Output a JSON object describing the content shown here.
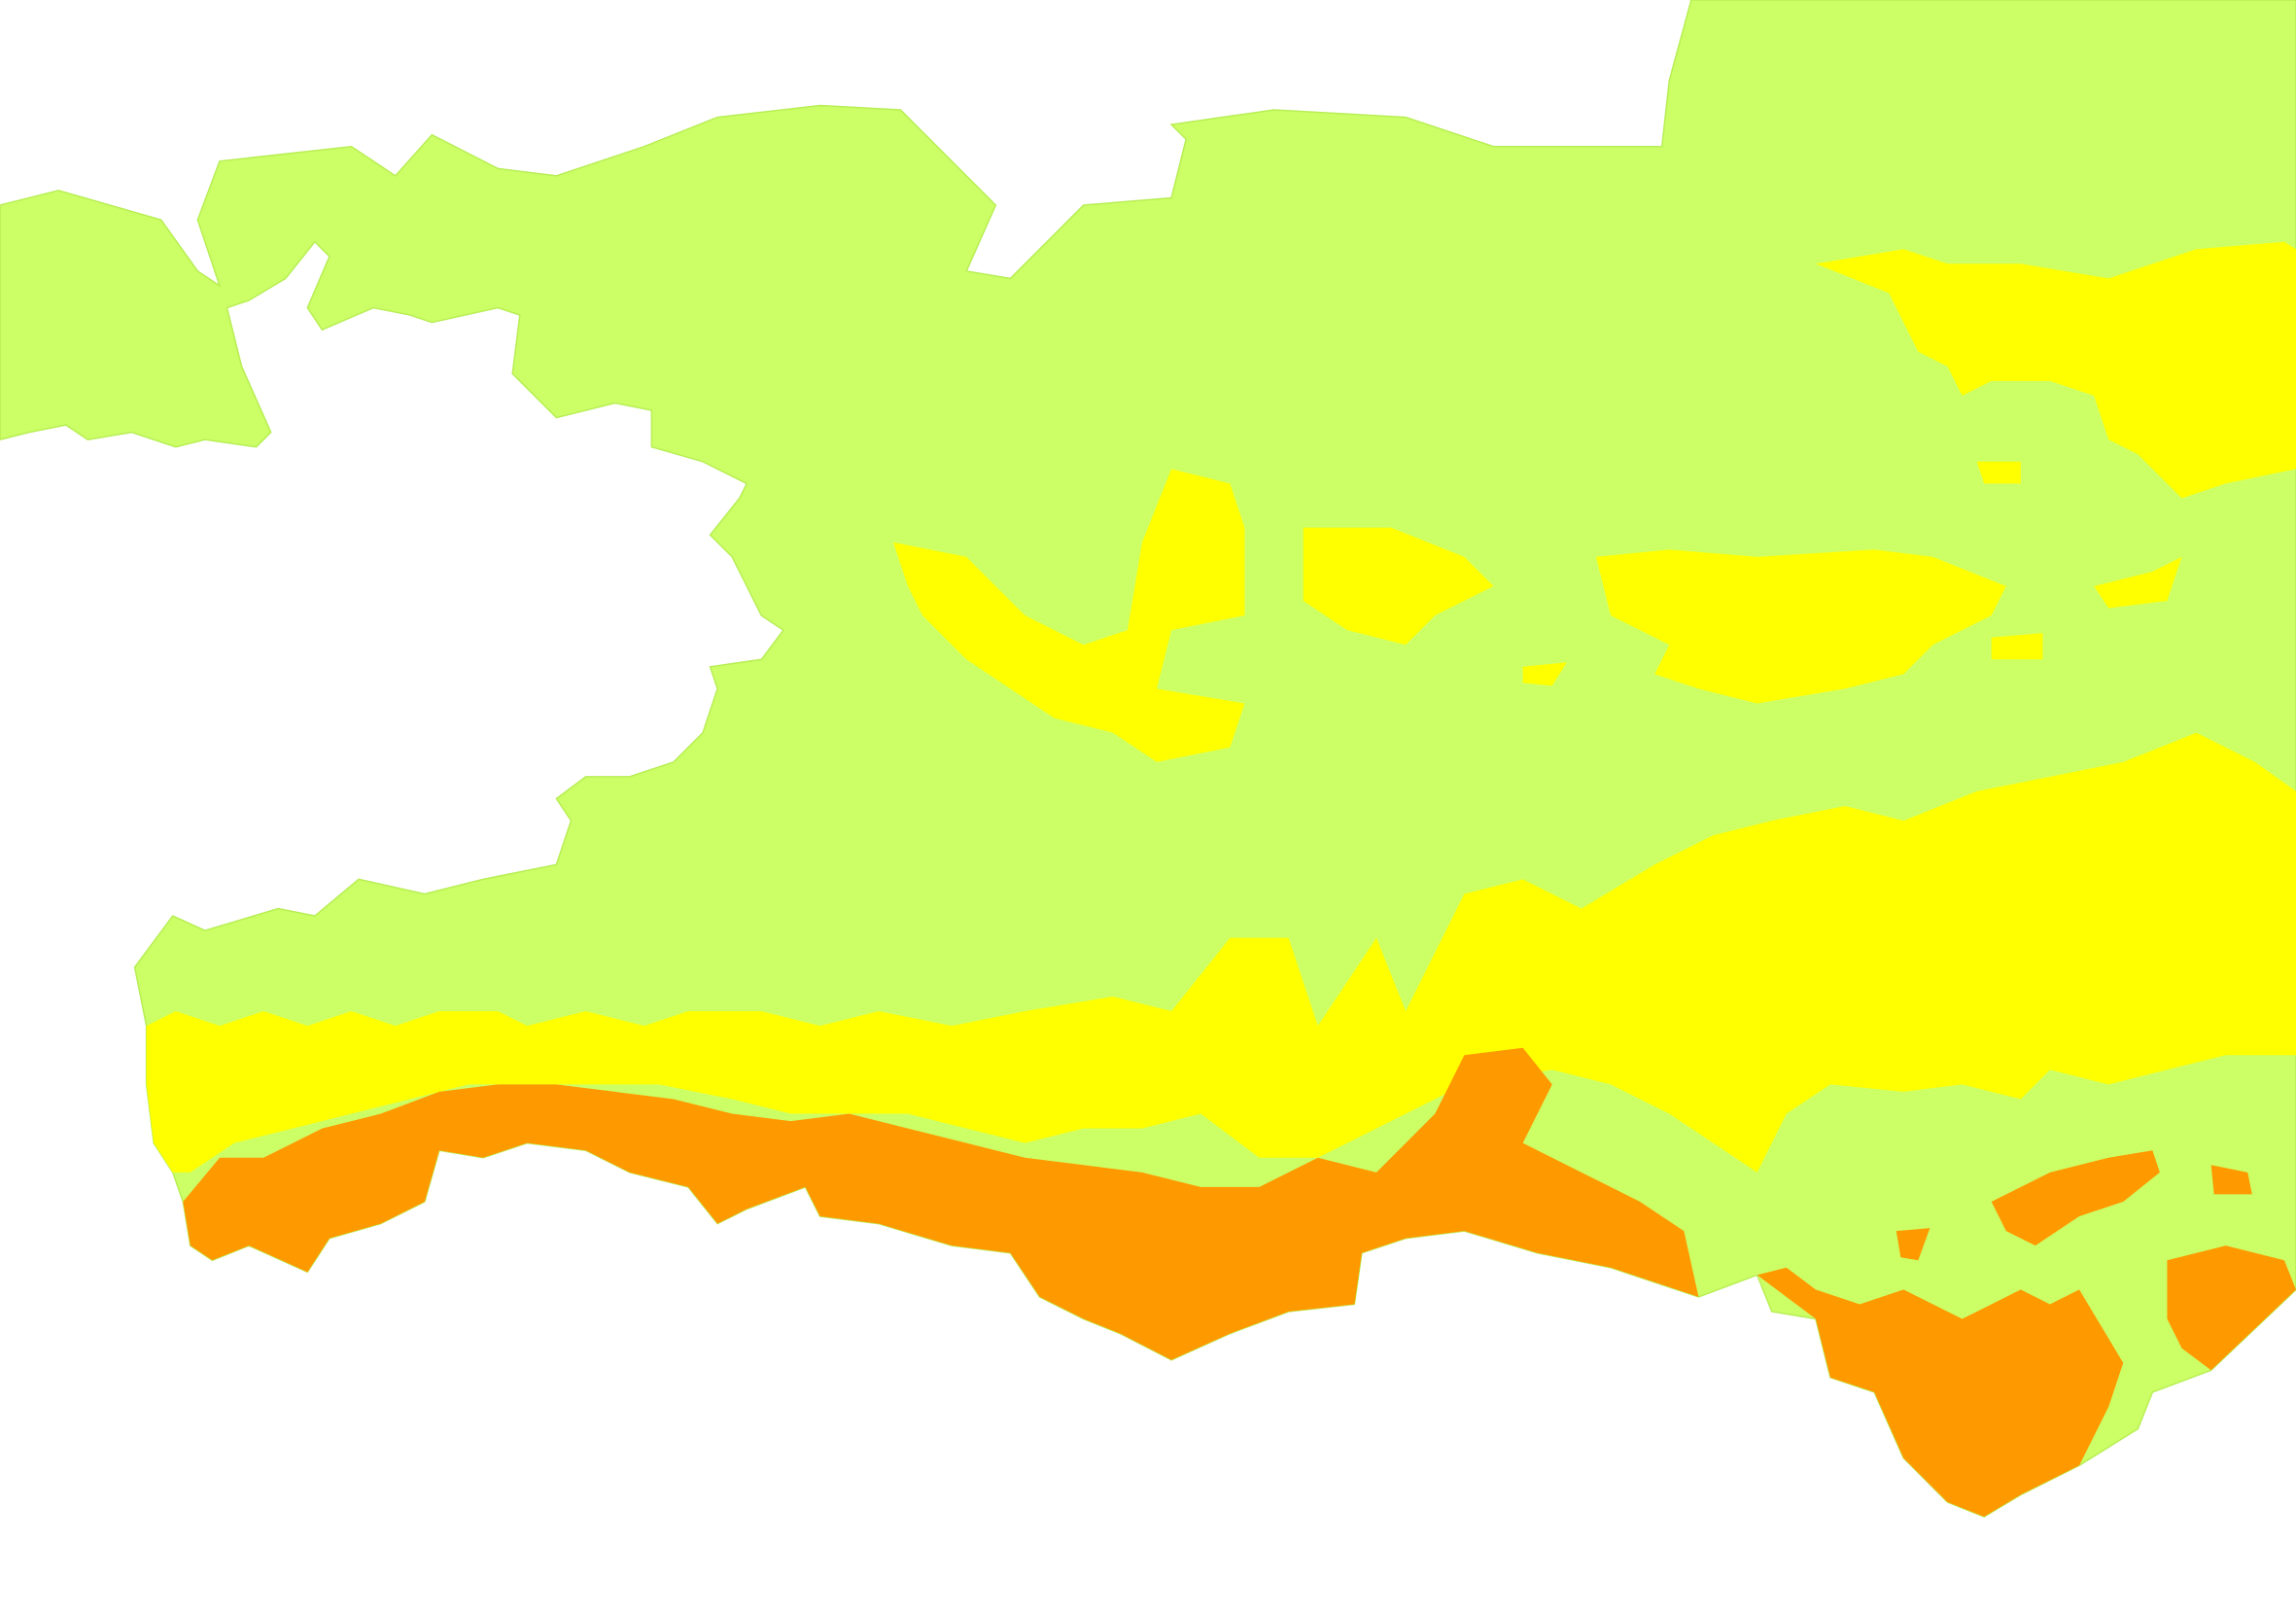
{
  "map": {
    "colors": {
      "background": "#ffffff",
      "low": "#ccff66",
      "medium": "#ffff00",
      "high": "#ff9900",
      "border": "#b8ee55"
    },
    "zones": [
      "low",
      "medium",
      "high"
    ]
  }
}
